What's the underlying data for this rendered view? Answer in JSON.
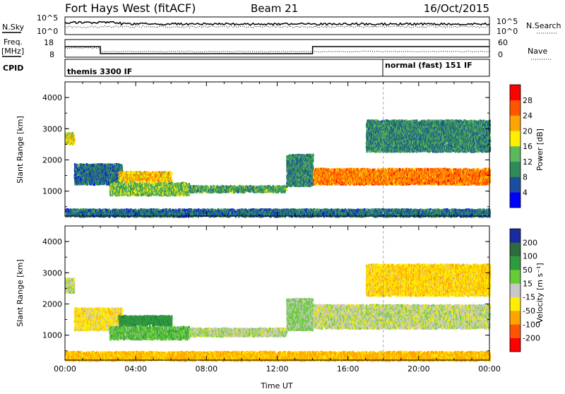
{
  "header": {
    "station": "Fort Hays West (fitACF)",
    "beam": "Beam 21",
    "date": "16/Oct/2015"
  },
  "status_panel": {
    "nsky_label": "N.Sky",
    "nsearch_label": "N.Search",
    "freq_label_1": "Freq.",
    "freq_label_2": "[MHz]",
    "nave_label": "Nave",
    "cpid_label": "CPID",
    "noise_ticks": [
      "10^5",
      "10^0"
    ],
    "freq_ticks": [
      "18",
      "8"
    ],
    "nave_ticks": [
      "60",
      "0"
    ],
    "cpid_1": "themis 3300 IF",
    "cpid_2": "normal (fast) 151 IF"
  },
  "power_colorbar": {
    "title": "Power [dB]",
    "ticks": [
      "28",
      "24",
      "20",
      "16",
      "12",
      "8",
      "4"
    ],
    "colors": [
      "#0000ff",
      "#1c4ea0",
      "#2e8b57",
      "#5cb85c",
      "#ffee00",
      "#ffa500",
      "#ff5500",
      "#ff0000"
    ]
  },
  "velocity_colorbar": {
    "title": "Velocity [m s⁻¹]",
    "ticks": [
      "200",
      "100",
      "50",
      "15",
      "-15",
      "-50",
      "-100",
      "-200"
    ],
    "colors": [
      "#1a2aa0",
      "#2e6b3f",
      "#2e9b3f",
      "#66cc33",
      "#c8c8c8",
      "#ffee00",
      "#ffa500",
      "#ff5500",
      "#ff0000"
    ]
  },
  "chart_data": [
    {
      "type": "heatmap",
      "title": "Power",
      "xlabel": "Time UT",
      "ylabel": "Slant Range [km]",
      "x_ticks": [
        "00:00",
        "04:00",
        "08:00",
        "12:00",
        "16:00",
        "20:00",
        "00:00"
      ],
      "y_ticks": [
        "1000",
        "2000",
        "3000",
        "4000"
      ],
      "xlim": [
        0,
        24
      ],
      "ylim": [
        200,
        4500
      ],
      "zlabel": "Power [dB]",
      "zlim": [
        0,
        30
      ],
      "regions": [
        {
          "t0": 0.0,
          "t1": 0.5,
          "r0": 2550,
          "r1": 2900,
          "power": 18
        },
        {
          "t0": 0.5,
          "t1": 3.2,
          "r0": 1250,
          "r1": 1900,
          "power": 8
        },
        {
          "t0": 2.5,
          "t1": 7.0,
          "r0": 900,
          "r1": 1300,
          "power": 14
        },
        {
          "t0": 3.0,
          "t1": 6.0,
          "r0": 1350,
          "r1": 1650,
          "power": 20
        },
        {
          "t0": 7.0,
          "t1": 12.5,
          "r0": 1000,
          "r1": 1200,
          "power": 12
        },
        {
          "t0": 12.5,
          "t1": 14.0,
          "r0": 1200,
          "r1": 2200,
          "power": 10
        },
        {
          "t0": 14.0,
          "t1": 24.0,
          "r0": 1250,
          "r1": 1750,
          "power": 24
        },
        {
          "t0": 17.0,
          "t1": 24.0,
          "r0": 2300,
          "r1": 3300,
          "power": 10
        },
        {
          "t0": 0.0,
          "t1": 24.0,
          "r0": 220,
          "r1": 450,
          "power": 8
        }
      ]
    },
    {
      "type": "heatmap",
      "title": "Velocity",
      "xlabel": "Time UT",
      "ylabel": "Slant Range [km]",
      "x_ticks": [
        "00:00",
        "04:00",
        "08:00",
        "12:00",
        "16:00",
        "20:00",
        "00:00"
      ],
      "y_ticks": [
        "1000",
        "2000",
        "3000",
        "4000"
      ],
      "xlim": [
        0,
        24
      ],
      "ylim": [
        200,
        4500
      ],
      "zlabel": "Velocity [m s⁻¹]",
      "zlim": [
        -200,
        200
      ],
      "regions": [
        {
          "t0": 0.0,
          "t1": 0.5,
          "r0": 2400,
          "r1": 2850,
          "velocity": 0
        },
        {
          "t0": 0.5,
          "t1": 3.2,
          "r0": 1200,
          "r1": 1900,
          "velocity": -30
        },
        {
          "t0": 2.5,
          "t1": 7.0,
          "r0": 900,
          "r1": 1300,
          "velocity": 40
        },
        {
          "t0": 3.0,
          "t1": 6.0,
          "r0": 1350,
          "r1": 1650,
          "velocity": 80
        },
        {
          "t0": 7.0,
          "t1": 12.5,
          "r0": 1000,
          "r1": 1250,
          "velocity": 5
        },
        {
          "t0": 12.5,
          "t1": 14.0,
          "r0": 1200,
          "r1": 2200,
          "velocity": 20
        },
        {
          "t0": 14.0,
          "t1": 24.0,
          "r0": 1250,
          "r1": 2000,
          "velocity": 0
        },
        {
          "t0": 17.0,
          "t1": 24.0,
          "r0": 2300,
          "r1": 3300,
          "velocity": -40
        },
        {
          "t0": 0.0,
          "t1": 24.0,
          "r0": 220,
          "r1": 500,
          "velocity": -60
        }
      ]
    }
  ]
}
